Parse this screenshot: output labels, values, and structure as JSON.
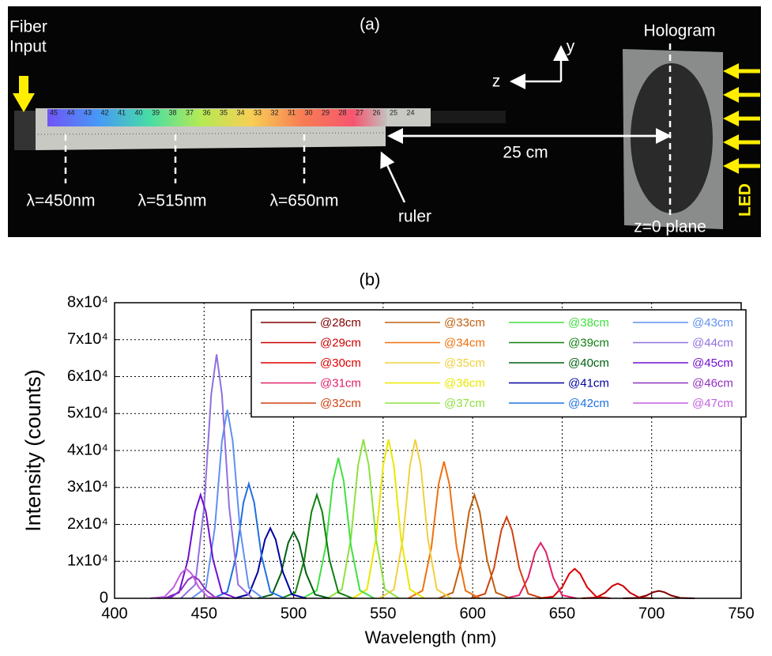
{
  "photo": {
    "label": "(a)",
    "fiber_input": [
      "Fiber",
      "Input"
    ],
    "hologram": "Hologram",
    "led": "LED",
    "axis_z": "z",
    "axis_y": "y",
    "distance": "25 cm",
    "wavelengths": [
      "λ=450nm",
      "λ=515nm",
      "λ=650nm"
    ],
    "ruler": "ruler",
    "plane": "z=0 plane",
    "ruler_marks": [
      "45",
      "44",
      "43",
      "42",
      "41",
      "40",
      "39",
      "38",
      "37",
      "36",
      "35",
      "34",
      "33",
      "32",
      "31",
      "30",
      "29",
      "28",
      "27",
      "26",
      "25",
      "24"
    ]
  },
  "chart_data": {
    "type": "line",
    "title": "(b)",
    "x_label": "Wavelength (nm)",
    "y_label": "Intensity (counts)",
    "grid": true,
    "legend": "upper right",
    "xlim": [
      400,
      750
    ],
    "xticks": [
      400,
      450,
      500,
      550,
      600,
      650,
      700,
      750
    ],
    "ylim": [
      0,
      80000
    ],
    "yticks": [
      0,
      {
        "value": 10000,
        "label": "1x10⁴"
      },
      {
        "value": 20000,
        "label": "2x10⁴"
      },
      {
        "value": 30000,
        "label": "3x10⁴"
      },
      {
        "value": 40000,
        "label": "4x10⁴"
      },
      {
        "value": 50000,
        "label": "5x10⁴"
      },
      {
        "value": 60000,
        "label": "6x10⁴"
      },
      {
        "value": 70000,
        "label": "7x10⁴"
      },
      {
        "value": 80000,
        "label": "8x10⁴"
      }
    ],
    "series": [
      {
        "name": "@28cm",
        "color": "#800000",
        "x": [
          684,
          692,
          697,
          701,
          704,
          707,
          711,
          716,
          724
        ],
        "values": [
          0,
          110,
          750,
          1670,
          2000,
          1670,
          750,
          110,
          0
        ]
      },
      {
        "name": "@29cm",
        "color": "#cc0000",
        "x": [
          661,
          669,
          674,
          678,
          681,
          684,
          688,
          693,
          701
        ],
        "values": [
          0,
          220,
          1500,
          3340,
          4000,
          3340,
          1500,
          220,
          0
        ]
      },
      {
        "name": "@30cm",
        "color": "#e00000",
        "x": [
          637,
          645,
          650,
          654,
          657,
          660,
          664,
          669,
          677
        ],
        "values": [
          0,
          450,
          3000,
          6680,
          8000,
          6680,
          3000,
          450,
          0
        ]
      },
      {
        "name": "@31cm",
        "color": "#e0206a",
        "x": [
          618,
          626,
          631,
          635,
          638,
          641,
          645,
          650,
          658
        ],
        "values": [
          0,
          840,
          5630,
          12530,
          15000,
          12530,
          5630,
          840,
          0
        ]
      },
      {
        "name": "@32cm",
        "color": "#d04010",
        "x": [
          599,
          607,
          612,
          616,
          619,
          622,
          626,
          631,
          639
        ],
        "values": [
          0,
          1230,
          8250,
          18370,
          22000,
          18370,
          8250,
          1230,
          0
        ]
      },
      {
        "name": "@33cm",
        "color": "#c06010",
        "x": [
          581,
          589,
          594,
          598,
          601,
          604,
          608,
          613,
          621
        ],
        "values": [
          0,
          1570,
          10500,
          23380,
          28000,
          23380,
          10500,
          1570,
          0
        ]
      },
      {
        "name": "@34cm",
        "color": "#f07010",
        "x": [
          564,
          572,
          577,
          581,
          584,
          587,
          591,
          596,
          604
        ],
        "values": [
          0,
          2070,
          13880,
          30900,
          37000,
          30900,
          13880,
          2070,
          0
        ]
      },
      {
        "name": "@35cm",
        "color": "#f0d040",
        "x": [
          548,
          556,
          561,
          565,
          568,
          571,
          575,
          580,
          588
        ],
        "values": [
          0,
          2410,
          16130,
          35910,
          43000,
          35910,
          16130,
          2410,
          0
        ]
      },
      {
        "name": "@36cm",
        "color": "#e8e800",
        "x": [
          533,
          541,
          546,
          550,
          553,
          556,
          560,
          565,
          573
        ],
        "values": [
          0,
          2410,
          16130,
          35910,
          43000,
          35910,
          16130,
          2410,
          0
        ]
      },
      {
        "name": "@37cm",
        "color": "#90e040",
        "x": [
          519,
          527,
          532,
          536,
          539,
          542,
          546,
          551,
          559
        ],
        "values": [
          0,
          2410,
          16130,
          35910,
          43000,
          35910,
          16130,
          2410,
          0
        ]
      },
      {
        "name": "@38cm",
        "color": "#40e040",
        "x": [
          505,
          513,
          518,
          522,
          525,
          528,
          532,
          537,
          545
        ],
        "values": [
          0,
          2130,
          14250,
          31730,
          38000,
          31730,
          14250,
          2130,
          0
        ]
      },
      {
        "name": "@39cm",
        "color": "#108010",
        "x": [
          493,
          501,
          506,
          510,
          513,
          516,
          520,
          525,
          533
        ],
        "values": [
          0,
          1570,
          10500,
          23380,
          28000,
          23380,
          10500,
          1570,
          0
        ]
      },
      {
        "name": "@40cm",
        "color": "#006010",
        "x": [
          480,
          488,
          493,
          497,
          500,
          503,
          507,
          512,
          520
        ],
        "values": [
          0,
          1010,
          6750,
          15030,
          18000,
          15030,
          6750,
          1010,
          0
        ]
      },
      {
        "name": "@41cm",
        "color": "#0000a0",
        "x": [
          467,
          475,
          480,
          484,
          487,
          490,
          494,
          499,
          507
        ],
        "values": [
          0,
          1060,
          7130,
          15870,
          19000,
          15870,
          7130,
          1060,
          0
        ]
      },
      {
        "name": "@42cm",
        "color": "#2070e0",
        "x": [
          455,
          463,
          468,
          472,
          475,
          478,
          482,
          487,
          495
        ],
        "values": [
          0,
          1740,
          11630,
          25890,
          31000,
          25890,
          11630,
          1740,
          0
        ]
      },
      {
        "name": "@43cm",
        "color": "#6090f0",
        "x": [
          443,
          451,
          456,
          460,
          463,
          466,
          470,
          475,
          483
        ],
        "values": [
          0,
          2860,
          19130,
          42590,
          51000,
          42590,
          19130,
          2860,
          0
        ]
      },
      {
        "name": "@44cm",
        "color": "#9070e0",
        "x": [
          437,
          445,
          450,
          454,
          457,
          460,
          464,
          469,
          477
        ],
        "values": [
          0,
          3700,
          24750,
          55110,
          66000,
          55110,
          24750,
          3700,
          0
        ]
      },
      {
        "name": "@45cm",
        "color": "#7010d0",
        "x": [
          428,
          436,
          441,
          445,
          448,
          451,
          455,
          460,
          468
        ],
        "values": [
          0,
          1570,
          10500,
          23380,
          28000,
          23380,
          10500,
          1570,
          0
        ]
      },
      {
        "name": "@46cm",
        "color": "#9030c0",
        "x": [
          424,
          432,
          437,
          441,
          444,
          447,
          451,
          456,
          464
        ],
        "values": [
          0,
          340,
          2250,
          5010,
          6000,
          5010,
          2250,
          340,
          0
        ]
      },
      {
        "name": "@47cm",
        "color": "#c060e0",
        "x": [
          420,
          428,
          433,
          437,
          440,
          443,
          447,
          452,
          460
        ],
        "values": [
          0,
          450,
          3000,
          6680,
          8000,
          6680,
          3000,
          450,
          0
        ]
      }
    ]
  }
}
